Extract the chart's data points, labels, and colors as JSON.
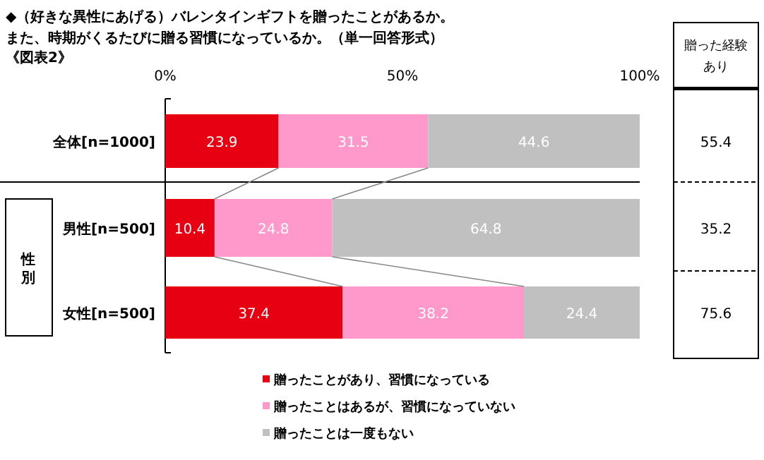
{
  "chart_data": {
    "type": "bar",
    "orientation": "horizontal",
    "stacked": true,
    "data_labels": true,
    "legend": "bottom",
    "title": "◆（好きな異性にあげる）バレンタインギフトを贈ったことがあるか。",
    "subtitle": "また、時期がくるたびに贈る習慣になっているか。（単一回答形式）",
    "categories": [
      "全体[n=1000]",
      "男性[n=500]",
      "女性[n=500]"
    ],
    "xlim": [
      0,
      100
    ],
    "xticks": [
      {
        "value": 0,
        "label": "0%"
      },
      {
        "value": 50,
        "label": "50%"
      },
      {
        "value": 100,
        "label": "100%"
      }
    ],
    "series": [
      {
        "name": "贈ったことがあり、習慣になっている",
        "color": "#e60012",
        "values": [
          23.9,
          10.4,
          37.4
        ]
      },
      {
        "name": "贈ったことはあるが、習慣になっていない",
        "color": "#ff99cc",
        "values": [
          31.5,
          24.8,
          38.2
        ]
      },
      {
        "name": "贈ったことは一度もない",
        "color": "#c0c0c0",
        "values": [
          44.6,
          64.8,
          24.4
        ]
      }
    ],
    "annotations": [
      "《図表2》",
      "性別",
      "贈った経験あり",
      "55.4",
      "35.2",
      "75.6"
    ]
  }
}
